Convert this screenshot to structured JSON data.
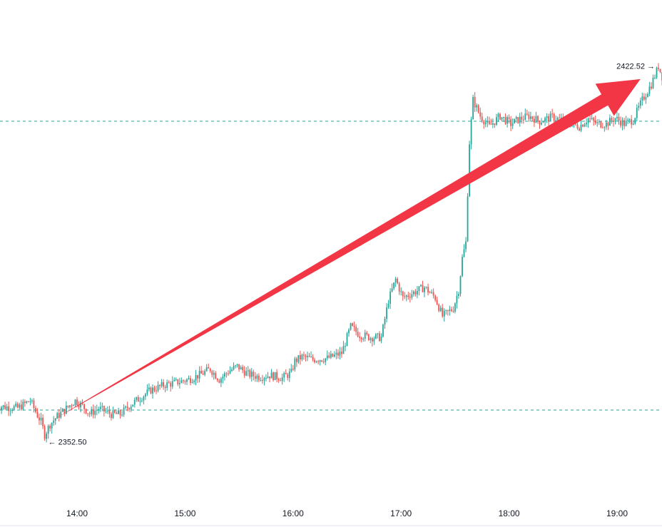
{
  "chart_data": {
    "type": "candlestick",
    "x_ticks": [
      "14:00",
      "15:00",
      "16:00",
      "17:00",
      "18:00",
      "19:00"
    ],
    "annotations": {
      "high_label": "2422.52 →",
      "low_label": "← 2352.50"
    },
    "horizontal_lines": [
      2412.0,
      2357.2
    ],
    "trend_arrow": {
      "from": [
        "13:45",
        2355.0
      ],
      "to": [
        "19:13",
        2420.0
      ]
    },
    "colors": {
      "up": "#26a69a",
      "down": "#ef5350",
      "arrow": "#f23645",
      "dashed": "#26a69a"
    },
    "path_points": [
      [
        "13:15",
        2358.0
      ],
      [
        "13:28",
        2357.6
      ],
      [
        "13:35",
        2359.0
      ],
      [
        "13:39",
        2356.2
      ],
      [
        "13:41",
        2355.0
      ],
      [
        "13:43",
        2352.5
      ],
      [
        "13:46",
        2354.5
      ],
      [
        "13:50",
        2356.0
      ],
      [
        "13:55",
        2357.5
      ],
      [
        "14:00",
        2359.0
      ],
      [
        "14:04",
        2358.0
      ],
      [
        "14:08",
        2356.5
      ],
      [
        "14:13",
        2357.5
      ],
      [
        "14:20",
        2356.4
      ],
      [
        "14:25",
        2356.4
      ],
      [
        "14:30",
        2358.0
      ],
      [
        "14:36",
        2359.5
      ],
      [
        "14:42",
        2361.0
      ],
      [
        "14:50",
        2362.0
      ],
      [
        "14:57",
        2362.5
      ],
      [
        "15:03",
        2363.0
      ],
      [
        "15:10",
        2364.0
      ],
      [
        "15:15",
        2365.0
      ],
      [
        "15:20",
        2363.0
      ],
      [
        "15:25",
        2364.5
      ],
      [
        "15:30",
        2365.5
      ],
      [
        "15:36",
        2364.0
      ],
      [
        "15:42",
        2363.5
      ],
      [
        "15:48",
        2363.8
      ],
      [
        "15:55",
        2363.3
      ],
      [
        "16:00",
        2364.3
      ],
      [
        "16:02",
        2366.5
      ],
      [
        "16:06",
        2367.3
      ],
      [
        "16:12",
        2366.8
      ],
      [
        "16:20",
        2367.0
      ],
      [
        "16:28",
        2368.0
      ],
      [
        "16:33",
        2373.0
      ],
      [
        "16:38",
        2371.5
      ],
      [
        "16:44",
        2371.0
      ],
      [
        "16:50",
        2371.0
      ],
      [
        "16:54",
        2378.0
      ],
      [
        "16:58",
        2382.0
      ],
      [
        "17:02",
        2378.5
      ],
      [
        "17:08",
        2379.5
      ],
      [
        "17:14",
        2380.5
      ],
      [
        "17:20",
        2378.5
      ],
      [
        "17:24",
        2375.0
      ],
      [
        "17:30",
        2376.5
      ],
      [
        "17:33",
        2380.0
      ],
      [
        "17:35",
        2386.0
      ],
      [
        "17:37",
        2389.0
      ],
      [
        "17:39",
        2408.0
      ],
      [
        "17:41",
        2416.0
      ],
      [
        "17:45",
        2413.0
      ],
      [
        "17:50",
        2411.0
      ],
      [
        "17:56",
        2413.0
      ],
      [
        "18:02",
        2411.5
      ],
      [
        "18:06",
        2412.3
      ],
      [
        "18:12",
        2413.0
      ],
      [
        "18:18",
        2412.0
      ],
      [
        "18:25",
        2412.8
      ],
      [
        "18:32",
        2412.0
      ],
      [
        "18:40",
        2411.0
      ],
      [
        "18:45",
        2412.5
      ],
      [
        "18:50",
        2411.5
      ],
      [
        "18:55",
        2411.5
      ],
      [
        "19:00",
        2412.6
      ],
      [
        "19:05",
        2411.5
      ],
      [
        "19:10",
        2412.3
      ],
      [
        "19:15",
        2416.0
      ],
      [
        "19:20",
        2419.0
      ],
      [
        "19:23",
        2421.5
      ],
      [
        "19:24",
        2422.5
      ],
      [
        "19:27",
        2419.5
      ]
    ]
  }
}
